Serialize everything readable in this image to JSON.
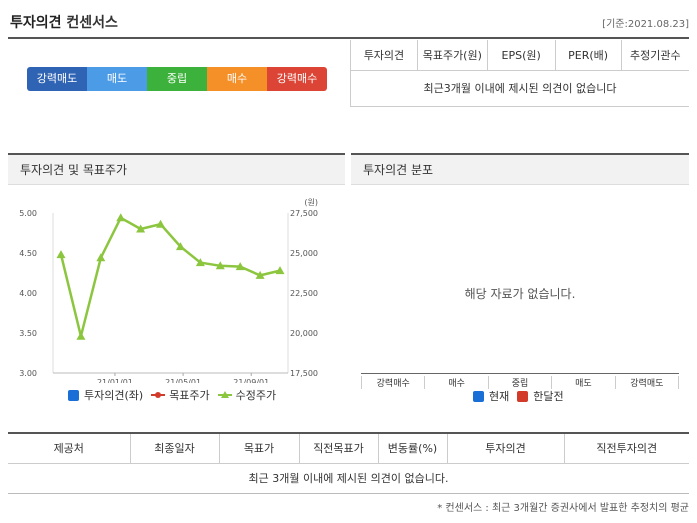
{
  "header": {
    "title": "투자의견",
    "title_sub": "컨센서스",
    "date": "[기준:2021.08.23]"
  },
  "scale": [
    {
      "label": "강력매도",
      "color": "#3a6fbf"
    },
    {
      "label": "매도",
      "color": "#4a9be8"
    },
    {
      "label": "중립",
      "color": "#3fb63f"
    },
    {
      "label": "매수",
      "color": "#f5922b"
    },
    {
      "label": "강력매수",
      "color": "#e04a3c"
    }
  ],
  "consensus_table": {
    "headers": [
      "투자의견",
      "목표주가(원)",
      "EPS(원)",
      "PER(배)",
      "추정기관수"
    ],
    "empty_message": "최근3개월 이내에 제시된 의견이 없습니다"
  },
  "left_panel": {
    "title": "투자의견 및 목표주가",
    "unit": "(원)",
    "legend": [
      "투자의견(좌)",
      "목표주가",
      "수정주가"
    ]
  },
  "right_panel": {
    "title": "투자의견 분포",
    "empty_message": "해당 자료가 없습니다.",
    "categories": [
      "강력매수",
      "매수",
      "중립",
      "매도",
      "강력매도"
    ],
    "legend": [
      "현재",
      "한달전"
    ]
  },
  "chart_data": [
    {
      "type": "line",
      "x_ticks": [
        "21/01/01",
        "21/05/01",
        "21/09/01"
      ],
      "y_left_ticks": [
        "5.00",
        "4.50",
        "4.00",
        "3.50",
        "3.00"
      ],
      "y_left_range": [
        3.0,
        5.0
      ],
      "y_right_ticks": [
        "27,500",
        "25,000",
        "22,500",
        "20,000",
        "17,500"
      ],
      "y_right_range": [
        17500,
        27500
      ],
      "series": [
        {
          "name": "수정주가",
          "color": "#8cc63f",
          "values": [
            24900,
            19800,
            24700,
            27200,
            26500,
            26800,
            25400,
            24400,
            24200,
            24150,
            23600,
            23900
          ]
        }
      ]
    }
  ],
  "bottom_table": {
    "headers": [
      "제공처",
      "최종일자",
      "목표가",
      "직전목표가",
      "변동률(%)",
      "투자의견",
      "직전투자의견"
    ],
    "empty_message": "최근 3개월 이내에 제시된 의견이 없습니다."
  },
  "footnote": "* 컨센서스 : 최근 3개월간 증권사에서 발표한 추정치의 평균"
}
